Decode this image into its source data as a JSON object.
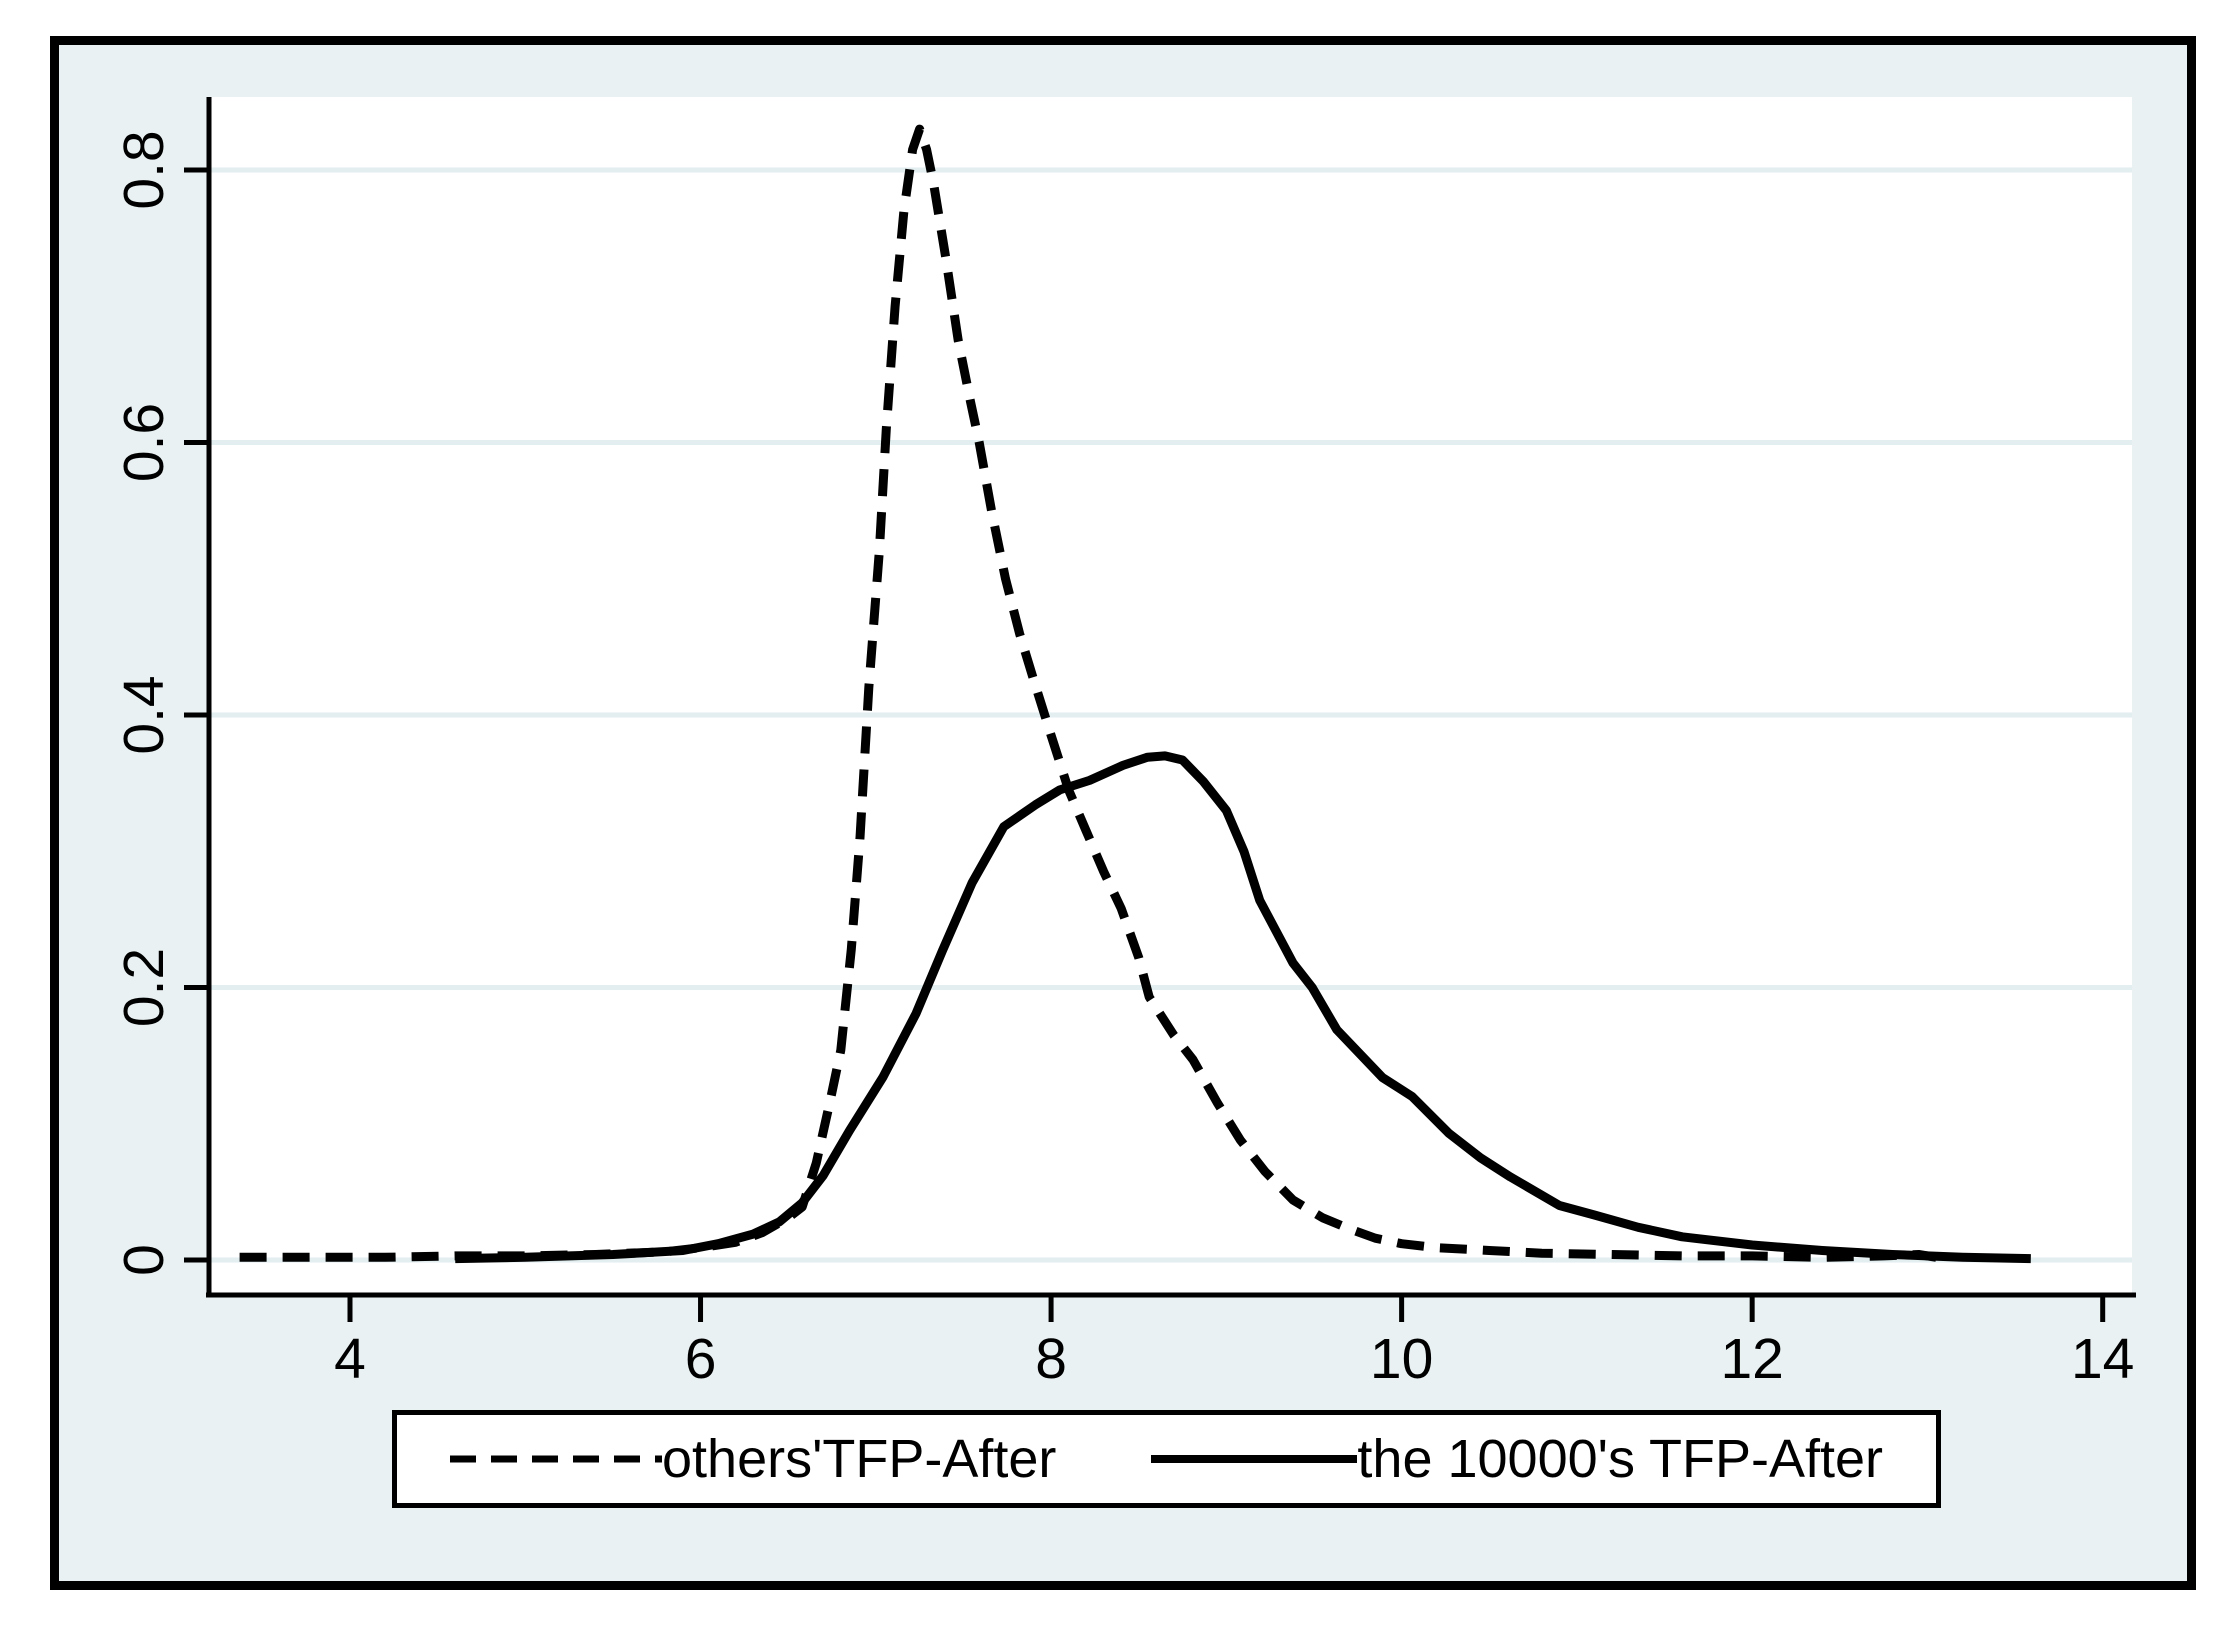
{
  "window": {
    "outer_background": "#ffffff",
    "frame_color": "#000000",
    "inner_background": "#e9f1f2"
  },
  "chart_data": {
    "type": "line",
    "subtype": "kernel-density",
    "title": "",
    "xlabel": "",
    "ylabel": "",
    "xlim": [
      3.2,
      14.17
    ],
    "ylim": [
      0,
      0.854
    ],
    "grid": "horizontal",
    "plot_background": "#ffffff",
    "grid_color": "#e2eeef",
    "axis_color": "#000000",
    "x_ticks": [
      4,
      6,
      8,
      10,
      12,
      14
    ],
    "x_tick_labels": [
      "4",
      "6",
      "8",
      "10",
      "12",
      "14"
    ],
    "y_ticks": [
      0,
      0.2,
      0.4,
      0.6,
      0.8
    ],
    "y_tick_labels": [
      "0",
      "0.2",
      "0.4",
      "0.6",
      "0.8"
    ],
    "legend_position": "bottom",
    "series": [
      {
        "name": "others'TFP-After",
        "style": "dashed",
        "color": "#000000",
        "peak": {
          "x": 7.25,
          "y": 0.83
        },
        "points": [
          [
            3.37,
            0.002
          ],
          [
            3.8,
            0.002
          ],
          [
            4.2,
            0.002
          ],
          [
            4.6,
            0.003
          ],
          [
            5.0,
            0.003
          ],
          [
            5.4,
            0.004
          ],
          [
            5.8,
            0.006
          ],
          [
            6.0,
            0.009
          ],
          [
            6.2,
            0.013
          ],
          [
            6.35,
            0.02
          ],
          [
            6.5,
            0.031
          ],
          [
            6.58,
            0.039
          ],
          [
            6.66,
            0.071
          ],
          [
            6.74,
            0.117
          ],
          [
            6.8,
            0.154
          ],
          [
            6.86,
            0.228
          ],
          [
            6.91,
            0.31
          ],
          [
            6.96,
            0.42
          ],
          [
            7.02,
            0.52
          ],
          [
            7.06,
            0.61
          ],
          [
            7.11,
            0.7
          ],
          [
            7.16,
            0.77
          ],
          [
            7.21,
            0.815
          ],
          [
            7.25,
            0.83
          ],
          [
            7.29,
            0.815
          ],
          [
            7.33,
            0.79
          ],
          [
            7.4,
            0.735
          ],
          [
            7.47,
            0.675
          ],
          [
            7.54,
            0.63
          ],
          [
            7.59,
            0.6
          ],
          [
            7.66,
            0.55
          ],
          [
            7.74,
            0.5
          ],
          [
            7.82,
            0.46
          ],
          [
            7.9,
            0.426
          ],
          [
            8.0,
            0.385
          ],
          [
            8.1,
            0.345
          ],
          [
            8.2,
            0.315
          ],
          [
            8.3,
            0.285
          ],
          [
            8.4,
            0.258
          ],
          [
            8.5,
            0.222
          ],
          [
            8.56,
            0.193
          ],
          [
            8.7,
            0.165
          ],
          [
            8.81,
            0.147
          ],
          [
            8.95,
            0.115
          ],
          [
            9.08,
            0.088
          ],
          [
            9.22,
            0.065
          ],
          [
            9.38,
            0.044
          ],
          [
            9.55,
            0.031
          ],
          [
            9.7,
            0.023
          ],
          [
            9.85,
            0.016
          ],
          [
            10.0,
            0.012
          ],
          [
            10.2,
            0.009
          ],
          [
            10.5,
            0.007
          ],
          [
            10.8,
            0.005
          ],
          [
            11.2,
            0.004
          ],
          [
            11.6,
            0.003
          ],
          [
            12.0,
            0.003
          ],
          [
            12.4,
            0.002
          ],
          [
            12.75,
            0.003
          ],
          [
            12.95,
            0.004
          ],
          [
            13.05,
            0.002
          ]
        ]
      },
      {
        "name": "the 10000's TFP-After",
        "style": "solid",
        "color": "#000000",
        "peak": {
          "x": 8.65,
          "y": 0.37
        },
        "points": [
          [
            4.6,
            0.001
          ],
          [
            5.0,
            0.002
          ],
          [
            5.5,
            0.004
          ],
          [
            5.9,
            0.007
          ],
          [
            6.1,
            0.012
          ],
          [
            6.3,
            0.019
          ],
          [
            6.45,
            0.028
          ],
          [
            6.58,
            0.042
          ],
          [
            6.7,
            0.062
          ],
          [
            6.85,
            0.095
          ],
          [
            7.04,
            0.134
          ],
          [
            7.23,
            0.181
          ],
          [
            7.38,
            0.227
          ],
          [
            7.55,
            0.277
          ],
          [
            7.73,
            0.318
          ],
          [
            7.91,
            0.334
          ],
          [
            8.05,
            0.345
          ],
          [
            8.22,
            0.352
          ],
          [
            8.41,
            0.363
          ],
          [
            8.55,
            0.369
          ],
          [
            8.65,
            0.37
          ],
          [
            8.75,
            0.367
          ],
          [
            8.87,
            0.351
          ],
          [
            9.0,
            0.33
          ],
          [
            9.1,
            0.3
          ],
          [
            9.19,
            0.264
          ],
          [
            9.38,
            0.218
          ],
          [
            9.49,
            0.2
          ],
          [
            9.63,
            0.169
          ],
          [
            9.89,
            0.134
          ],
          [
            10.06,
            0.12
          ],
          [
            10.27,
            0.093
          ],
          [
            10.45,
            0.075
          ],
          [
            10.62,
            0.061
          ],
          [
            10.9,
            0.04
          ],
          [
            11.1,
            0.033
          ],
          [
            11.35,
            0.024
          ],
          [
            11.6,
            0.017
          ],
          [
            12.0,
            0.011
          ],
          [
            12.4,
            0.007
          ],
          [
            12.8,
            0.004
          ],
          [
            13.2,
            0.002
          ],
          [
            13.59,
            0.001
          ]
        ]
      }
    ]
  },
  "legend": {
    "entries": [
      {
        "label": "others'TFP-After",
        "style": "dashed"
      },
      {
        "label": "the 10000's TFP-After",
        "style": "solid"
      }
    ]
  }
}
